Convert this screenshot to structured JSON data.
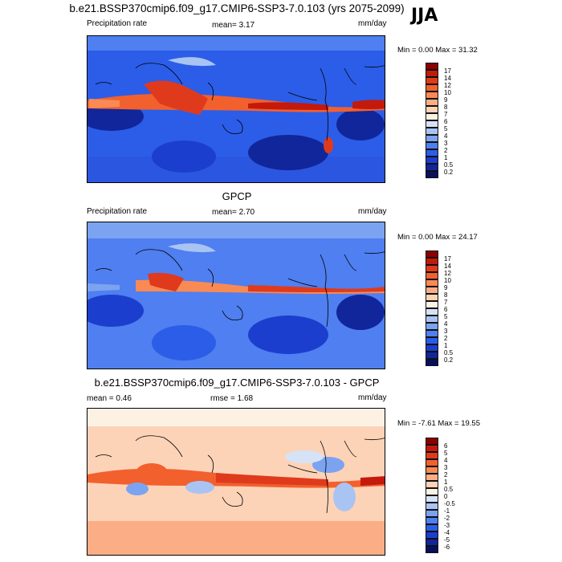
{
  "season": "JJA",
  "panel1": {
    "title": "b.e21.BSSP370cmip6.f09_g17.CMIP6-SSP3-7.0.103 (yrs 2075-2099)",
    "variable": "Precipitation rate",
    "mean_label": "mean=  3.17",
    "units": "mm/day",
    "minmax": "Min =   0.00 Max =  31.32"
  },
  "panel2": {
    "title": "GPCP",
    "variable": "Precipitation rate",
    "mean_label": "mean=  2.70",
    "units": "mm/day",
    "minmax": "Min =   0.00 Max =  24.17"
  },
  "panel3": {
    "title": "b.e21.BSSP370cmip6.f09_g17.CMIP6-SSP3-7.0.103 - GPCP",
    "mean_label": "mean =   0.46",
    "rmse_label": "rmse =   1.68",
    "units": "mm/day",
    "minmax": "Min =  -7.61 Max =  19.55"
  },
  "colorbar_precip": {
    "labels": [
      "17",
      "14",
      "12",
      "10",
      "9",
      "8",
      "7",
      "6",
      "5",
      "4",
      "3",
      "2",
      "1",
      "0.5",
      "0.2"
    ],
    "colors": [
      "#8b0000",
      "#c31a0c",
      "#e03a1c",
      "#f2602e",
      "#f98a54",
      "#fbae86",
      "#fdd3b8",
      "#fdf1e4",
      "#d6e3f7",
      "#a9c4f3",
      "#7ca3f0",
      "#4f7ff0",
      "#2b5de8",
      "#1b3ecf",
      "#11269a",
      "#08105c"
    ]
  },
  "colorbar_diff": {
    "labels": [
      "6",
      "5",
      "4",
      "3",
      "2",
      "1",
      "0.5",
      "0",
      "-0.5",
      "-1",
      "-2",
      "-3",
      "-4",
      "-5",
      "-6"
    ],
    "colors": [
      "#8b0000",
      "#c31a0c",
      "#e03a1c",
      "#f2602e",
      "#f98a54",
      "#fbae86",
      "#fdd3b8",
      "#fdf1e4",
      "#d6e3f7",
      "#a9c4f3",
      "#7ca3f0",
      "#4f7ff0",
      "#2b5de8",
      "#1b3ecf",
      "#11269a",
      "#08105c"
    ]
  }
}
